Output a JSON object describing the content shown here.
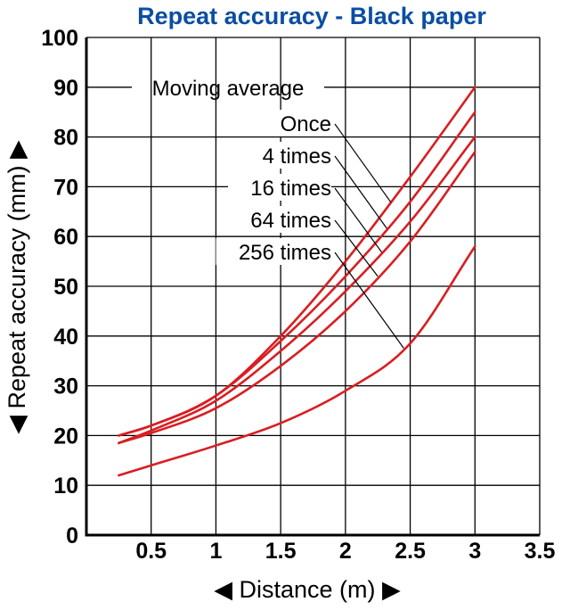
{
  "chart_data": {
    "type": "line",
    "title": "Repeat accuracy - Black paper",
    "xlabel": "◀ Distance (m) ▶",
    "ylabel": "◀ Repeat accuracy (mm) ▶",
    "xlim": [
      0,
      3.5
    ],
    "ylim": [
      0,
      100
    ],
    "x_ticks": [
      "0.5",
      "1",
      "1.5",
      "2",
      "2.5",
      "3",
      "3.5"
    ],
    "y_ticks": [
      "0",
      "10",
      "20",
      "30",
      "40",
      "50",
      "60",
      "70",
      "80",
      "90",
      "100"
    ],
    "grid": true,
    "legend_title": "Moving average",
    "series": [
      {
        "name": "Once",
        "x": [
          0.25,
          0.5,
          1.0,
          1.5,
          2.0,
          2.5,
          3.0
        ],
        "values": [
          20,
          22,
          28,
          40,
          55,
          72,
          90
        ]
      },
      {
        "name": "4 times",
        "x": [
          0.25,
          0.5,
          1.0,
          1.5,
          2.0,
          2.5,
          3.0
        ],
        "values": [
          20,
          22,
          28,
          39,
          52,
          67,
          85
        ]
      },
      {
        "name": "16 times",
        "x": [
          0.25,
          0.5,
          1.0,
          1.5,
          2.0,
          2.5,
          3.0
        ],
        "values": [
          18.5,
          21,
          27,
          37,
          49,
          63,
          80
        ]
      },
      {
        "name": "64 times",
        "x": [
          0.25,
          0.5,
          1.0,
          1.5,
          2.0,
          2.5,
          3.0
        ],
        "values": [
          18.5,
          20.5,
          25.5,
          34,
          45,
          59,
          77
        ]
      },
      {
        "name": "256 times",
        "x": [
          0.25,
          0.5,
          1.0,
          1.5,
          2.0,
          2.5,
          3.0
        ],
        "values": [
          12,
          14,
          18,
          22.5,
          29,
          38.5,
          58
        ]
      }
    ],
    "colors": {
      "line": "#d81e22",
      "title": "#0a4ea3",
      "axis": "#000000",
      "grid": "#000000"
    }
  }
}
